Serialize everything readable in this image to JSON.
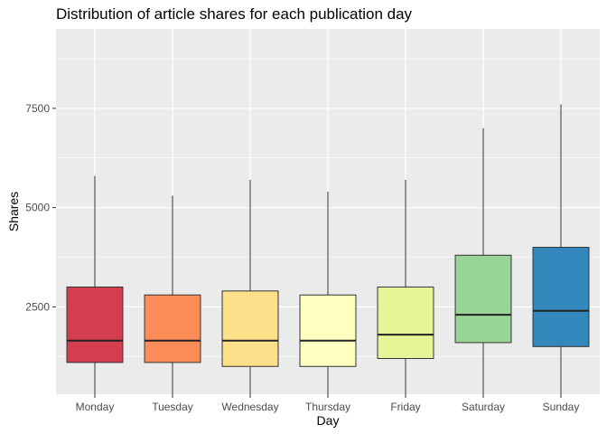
{
  "chart_data": {
    "type": "box",
    "title": "Distribution of article shares for each publication day",
    "xlabel": "Day",
    "ylabel": "Shares",
    "ylim": [
      300,
      9500
    ],
    "yticks": [
      2500,
      5000,
      7500
    ],
    "grid": true,
    "legend": "none",
    "categories": [
      "Monday",
      "Tuesday",
      "Wednesday",
      "Thursday",
      "Friday",
      "Saturday",
      "Sunday"
    ],
    "boxes": [
      {
        "category": "Monday",
        "whisker_low": 300,
        "q1": 1100,
        "median": 1650,
        "q3": 3000,
        "whisker_high": 5800,
        "color": "#D53E4F"
      },
      {
        "category": "Tuesday",
        "whisker_low": 300,
        "q1": 1100,
        "median": 1650,
        "q3": 2800,
        "whisker_high": 5300,
        "color": "#FC8D59"
      },
      {
        "category": "Wednesday",
        "whisker_low": 300,
        "q1": 1000,
        "median": 1650,
        "q3": 2900,
        "whisker_high": 5700,
        "color": "#FEE08B"
      },
      {
        "category": "Thursday",
        "whisker_low": 300,
        "q1": 1000,
        "median": 1650,
        "q3": 2800,
        "whisker_high": 5400,
        "color": "#FFFFBF"
      },
      {
        "category": "Friday",
        "whisker_low": 300,
        "q1": 1200,
        "median": 1800,
        "q3": 3000,
        "whisker_high": 5700,
        "color": "#E6F598"
      },
      {
        "category": "Saturday",
        "whisker_low": 300,
        "q1": 1600,
        "median": 2300,
        "q3": 3800,
        "whisker_high": 7000,
        "color": "#99D594"
      },
      {
        "category": "Sunday",
        "whisker_low": 300,
        "q1": 1500,
        "median": 2400,
        "q3": 4000,
        "whisker_high": 7600,
        "color": "#3288BD"
      }
    ]
  },
  "style": {
    "panel_background": "#EBEBEB",
    "grid_color": "#FFFFFF",
    "line_color": "#333333"
  }
}
